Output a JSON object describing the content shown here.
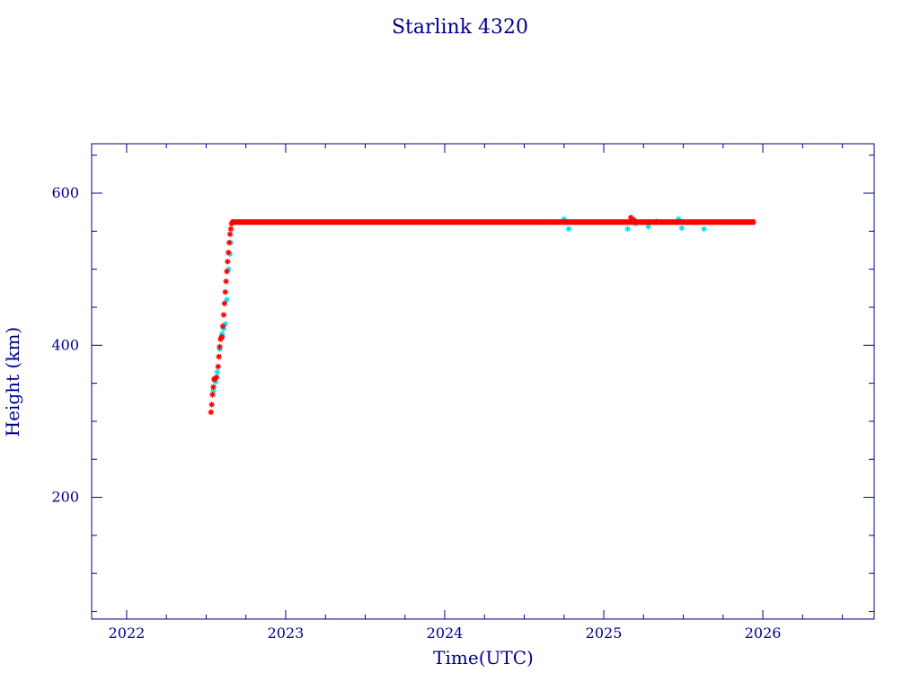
{
  "chart_data": {
    "type": "scatter",
    "title": "Starlink 4320",
    "xlabel": "Time(UTC)",
    "ylabel": "Height (km)",
    "xlim": [
      2021.78,
      2026.7
    ],
    "ylim": [
      40,
      665
    ],
    "x_major_ticks": [
      2022,
      2023,
      2024,
      2025,
      2026
    ],
    "x_tick_labels": [
      "2022",
      "2023",
      "2024",
      "2025",
      "2026"
    ],
    "x_minor_step": 0.25,
    "y_major_ticks": [
      200,
      400,
      600
    ],
    "y_tick_labels": [
      "200",
      "400",
      "600"
    ],
    "y_minor_step": 50,
    "grid": false,
    "legend": "none",
    "colors": {
      "axes": "#00008b",
      "text": "#00008b",
      "primary_series": "#ff0000",
      "secondary_series": "#00e5ee"
    },
    "series": [
      {
        "color": "#ff0000",
        "marker": "asterisk",
        "points": [
          [
            2022.53,
            312
          ],
          [
            2022.535,
            322
          ],
          [
            2022.54,
            335
          ],
          [
            2022.545,
            345
          ],
          [
            2022.55,
            355
          ],
          [
            2022.555,
            356
          ],
          [
            2022.565,
            358
          ],
          [
            2022.575,
            372
          ],
          [
            2022.58,
            385
          ],
          [
            2022.585,
            398
          ],
          [
            2022.59,
            408
          ],
          [
            2022.595,
            410
          ],
          [
            2022.6,
            411
          ],
          [
            2022.605,
            425
          ],
          [
            2022.61,
            440
          ],
          [
            2022.615,
            455
          ],
          [
            2022.62,
            470
          ],
          [
            2022.625,
            484
          ],
          [
            2022.63,
            497
          ],
          [
            2022.635,
            510
          ],
          [
            2022.64,
            522
          ],
          [
            2022.645,
            535
          ],
          [
            2022.65,
            546
          ],
          [
            2022.655,
            553
          ],
          [
            2022.66,
            560
          ],
          [
            2022.665,
            562
          ]
        ],
        "steady_segment": {
          "x_start": 2022.67,
          "x_end": 2025.95,
          "y": 562
        },
        "extra_points": [
          [
            2025.17,
            568
          ],
          [
            2025.19,
            565
          ]
        ]
      },
      {
        "color": "#00e5ee",
        "marker": "asterisk",
        "points": [
          [
            2022.545,
            340
          ],
          [
            2022.56,
            352
          ],
          [
            2022.57,
            365
          ],
          [
            2022.585,
            395
          ],
          [
            2022.6,
            415
          ],
          [
            2022.61,
            422
          ],
          [
            2022.62,
            428
          ],
          [
            2022.63,
            460
          ],
          [
            2022.64,
            500
          ],
          [
            2022.65,
            520
          ],
          [
            2022.655,
            535
          ],
          [
            2024.75,
            566
          ],
          [
            2024.78,
            553
          ],
          [
            2025.15,
            553
          ],
          [
            2025.2,
            560
          ],
          [
            2025.28,
            556
          ],
          [
            2025.33,
            563
          ],
          [
            2025.47,
            566
          ],
          [
            2025.49,
            554
          ],
          [
            2025.63,
            553
          ]
        ]
      }
    ]
  }
}
